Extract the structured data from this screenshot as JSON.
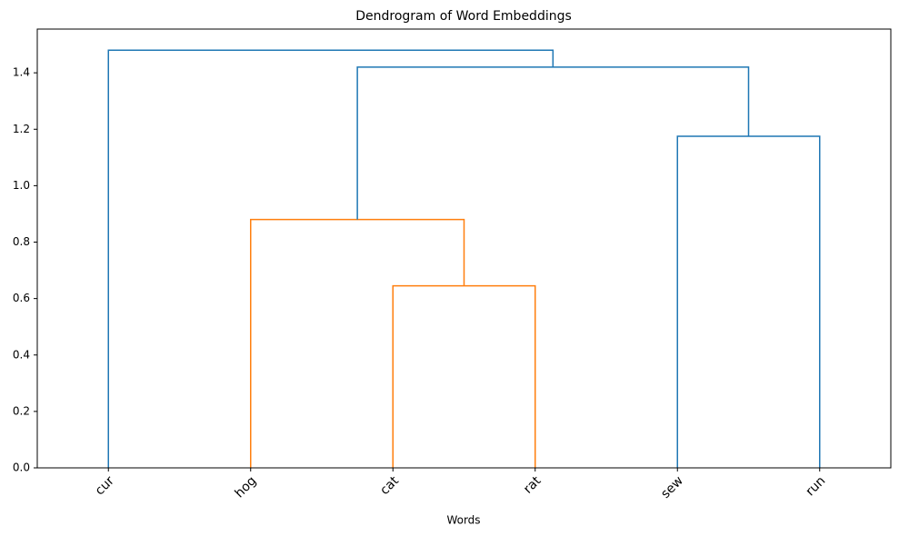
{
  "chart_data": {
    "type": "dendrogram",
    "title": "Dendrogram of Word Embeddings",
    "x_label": "Words",
    "leaves": [
      "cur",
      "hog",
      "cat",
      "rat",
      "sew",
      "run"
    ],
    "merges": [
      {
        "children": [
          2,
          3
        ],
        "height": 0.645,
        "color": "#ff7f0e"
      },
      {
        "children": [
          1,
          6
        ],
        "height": 0.88,
        "color": "#ff7f0e"
      },
      {
        "children": [
          4,
          5
        ],
        "height": 1.175,
        "color": "#1f77b4"
      },
      {
        "children": [
          7,
          8
        ],
        "height": 1.42,
        "color": "#1f77b4"
      },
      {
        "children": [
          0,
          9
        ],
        "height": 1.48,
        "color": "#1f77b4"
      }
    ],
    "ylim": [
      0,
      1.555
    ],
    "yticks": [
      {
        "value": 0,
        "label": "0.0"
      },
      0.2,
      0.4,
      0.6,
      0.8,
      {
        "value": 1,
        "label": "1.0"
      },
      1.2,
      1.4
    ]
  }
}
